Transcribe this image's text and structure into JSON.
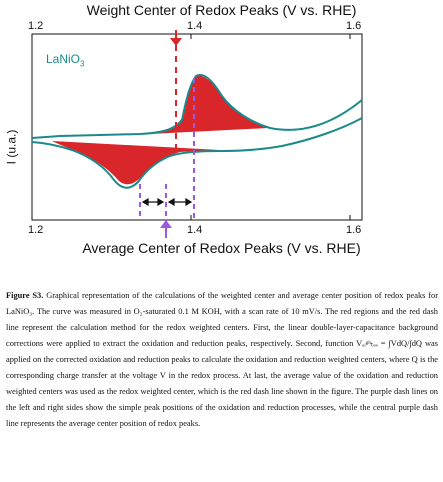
{
  "figure": {
    "top_axis_title": "Weight Center of Redox Peaks (V vs. RHE)",
    "bottom_axis_title": "Average Center of Redox Peaks (V vs. RHE)",
    "y_axis_label": "I (u.a.)",
    "legend_main": "LaNiO",
    "legend_sub": "3",
    "top_ticks": [
      "1.2",
      "1.4",
      "1.6"
    ],
    "bottom_ticks": [
      "1.2",
      "1.4",
      "1.6"
    ],
    "colors": {
      "curve": "#1a8a8a",
      "fill": "#d8262a",
      "red_dash": "#d8262a",
      "purple": "#9b59e0"
    }
  },
  "caption": {
    "label": "Figure S3.",
    "text": "Graphical representation of the calculations of the weighted center and average center position of redox peaks for LaNiO₃. The curve was measured in O₂-saturated 0.1 M KOH, with a scan rate of 10 mV/s. The red regions and the red dash line represent the calculation method for the redox weighted centers. First, the linear double-layer-capacitance background corrections were applied to extract the oxidation and reduction peaks, respectively. Second, function Vₑᵢᵍʰₜₑₔ = ∫VdQ/∫dQ was applied on the corrected oxidation and reduction peaks to calculate the oxidation and reduction weighted centers, where Q is the corresponding charge transfer at the voltage V in the redox process. At last, the average value of the oxidation and reduction weighted centers was used as the redox weighted center, which is the red dash line shown in the figure. The purple dash lines on the left and right sides show the simple peak positions of the oxidation and reduction processes, while the central purple dash line represents the average center position of redox peaks."
  }
}
